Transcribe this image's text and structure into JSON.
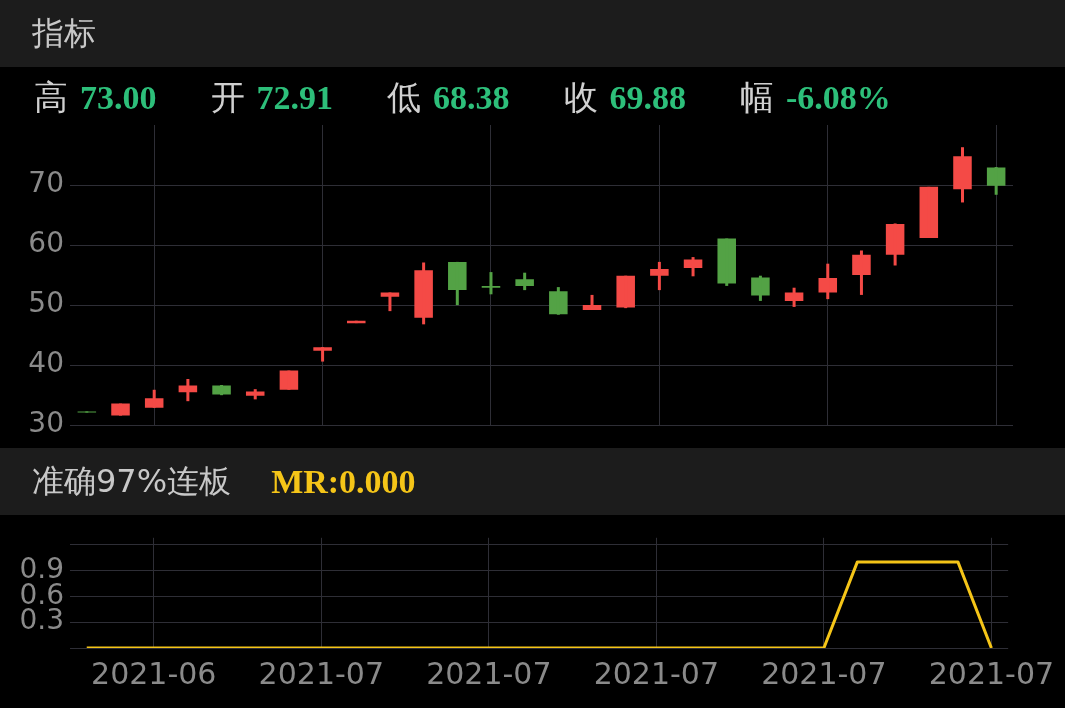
{
  "chart_data": [
    {
      "type": "candlestick",
      "title": "指标",
      "annotations": [
        "高 73.00",
        "开 72.91",
        "低 68.38",
        "收 69.88",
        "幅 -6.08%"
      ],
      "categories": [
        null,
        null,
        "2021-06",
        null,
        null,
        null,
        null,
        "2021-07",
        null,
        null,
        null,
        null,
        "2021-07",
        null,
        null,
        null,
        null,
        "2021-07",
        null,
        null,
        null,
        null,
        "2021-07",
        null,
        null,
        null,
        null,
        "2021-07"
      ],
      "ohlc": [
        [
          32.3,
          32.3,
          32.1,
          32.1
        ],
        [
          31.6,
          33.6,
          31.6,
          33.6
        ],
        [
          32.9,
          35.9,
          32.9,
          34.5
        ],
        [
          35.5,
          37.7,
          34.0,
          36.6
        ],
        [
          36.6,
          36.7,
          35.0,
          35.1
        ],
        [
          34.9,
          36.0,
          34.3,
          35.6
        ],
        [
          35.9,
          39.1,
          35.9,
          39.1
        ],
        [
          42.4,
          43.0,
          40.6,
          43.0
        ],
        [
          47.0,
          47.4,
          47.0,
          47.4
        ],
        [
          51.4,
          52.1,
          49.0,
          52.1
        ],
        [
          47.9,
          57.1,
          46.8,
          55.8
        ],
        [
          57.2,
          57.2,
          50.0,
          52.5
        ],
        [
          53.2,
          55.5,
          51.8,
          52.9
        ],
        [
          54.3,
          55.4,
          52.5,
          53.2
        ],
        [
          52.3,
          53.0,
          48.4,
          48.5
        ],
        [
          49.2,
          51.7,
          49.2,
          50.0
        ],
        [
          49.6,
          54.9,
          49.5,
          54.9
        ],
        [
          54.9,
          57.2,
          52.5,
          56.0
        ],
        [
          56.2,
          58.0,
          54.8,
          57.6
        ],
        [
          61.1,
          61.1,
          53.2,
          53.6
        ],
        [
          54.6,
          54.9,
          50.7,
          51.6
        ],
        [
          50.7,
          52.9,
          49.7,
          52.1
        ],
        [
          52.1,
          56.9,
          51.0,
          54.5
        ],
        [
          55.0,
          59.1,
          51.7,
          58.4
        ],
        [
          58.4,
          63.6,
          56.6,
          63.5
        ],
        [
          61.2,
          69.7,
          61.2,
          69.7
        ],
        [
          69.3,
          76.3,
          67.1,
          74.8
        ],
        [
          72.91,
          73.0,
          68.38,
          69.88
        ]
      ],
      "colors": [
        "#53a245",
        "#f44a46",
        "#f44a46",
        "#f44a46",
        "#53a245",
        "#f44a46",
        "#f44a46",
        "#f44a46",
        "#f44a46",
        "#f44a46",
        "#f44a46",
        "#53a245",
        "#53a245",
        "#53a245",
        "#53a245",
        "#f44a46",
        "#f44a46",
        "#f44a46",
        "#f44a46",
        "#53a245",
        "#53a245",
        "#f44a46",
        "#f44a46",
        "#f44a46",
        "#f44a46",
        "#f44a46",
        "#f44a46",
        "#53a245"
      ],
      "ylim": [
        30,
        80
      ],
      "yticks": [
        30,
        40,
        50,
        60,
        70
      ],
      "grid": true,
      "tick_labels": "y"
    },
    {
      "type": "line",
      "title": "准确97%连板",
      "annotations": [
        "MR:0.000"
      ],
      "categories": [
        null,
        null,
        "2021-06",
        null,
        null,
        null,
        null,
        "2021-07",
        null,
        null,
        null,
        null,
        "2021-07",
        null,
        null,
        null,
        null,
        "2021-07",
        null,
        null,
        null,
        null,
        "2021-07",
        null,
        null,
        null,
        null,
        "2021-07"
      ],
      "values": [
        0,
        0,
        0,
        0,
        0,
        0,
        0,
        0,
        0,
        0,
        0,
        0,
        0,
        0,
        0,
        0,
        0,
        0,
        0,
        0,
        0,
        0,
        0,
        1,
        1,
        1,
        1,
        0
      ],
      "color": "#f5c518",
      "marker": "none",
      "ylim": [
        0,
        1.28
      ],
      "yticks": [
        {
          "value": 0,
          "label": null
        },
        0.3,
        0.6,
        0.9,
        {
          "value": 1.2,
          "label": null
        }
      ],
      "grid": true
    }
  ]
}
